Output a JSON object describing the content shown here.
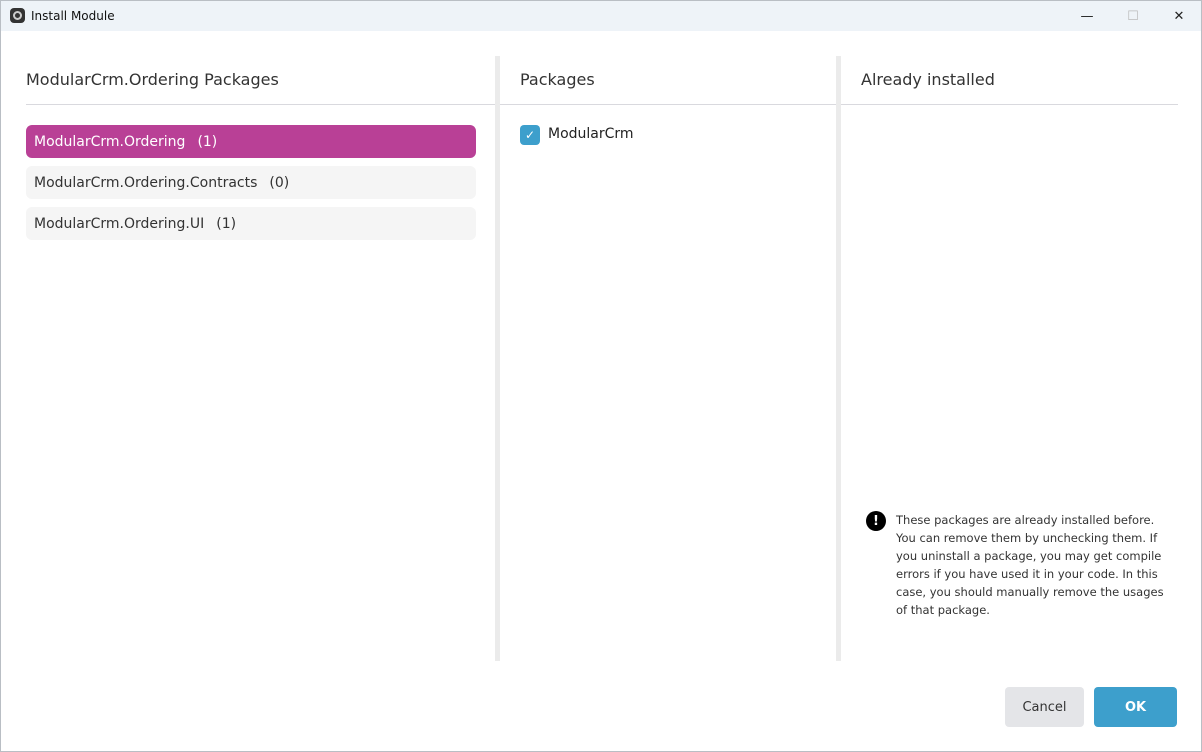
{
  "window": {
    "title": "Install Module",
    "minimize": "—",
    "maximize": "☐",
    "close": "✕"
  },
  "left": {
    "heading": "ModularCrm.Ordering Packages",
    "items": [
      {
        "label": "ModularCrm.Ordering",
        "count": "(1)",
        "selected": true
      },
      {
        "label": "ModularCrm.Ordering.Contracts",
        "count": "(0)",
        "selected": false
      },
      {
        "label": "ModularCrm.Ordering.UI",
        "count": "(1)",
        "selected": false
      }
    ]
  },
  "middle": {
    "heading": "Packages",
    "packages": [
      {
        "label": "ModularCrm",
        "checked": true
      }
    ]
  },
  "right": {
    "heading": "Already installed",
    "warning": "These packages are already installed before. You can remove them by unchecking them. If you uninstall a package, you may get compile errors if you have used it in your code. In this case, you should manually remove the usages of that package."
  },
  "footer": {
    "cancel": "Cancel",
    "ok": "OK"
  },
  "colors": {
    "accent": "#b94096",
    "primary": "#3d9fcc"
  }
}
